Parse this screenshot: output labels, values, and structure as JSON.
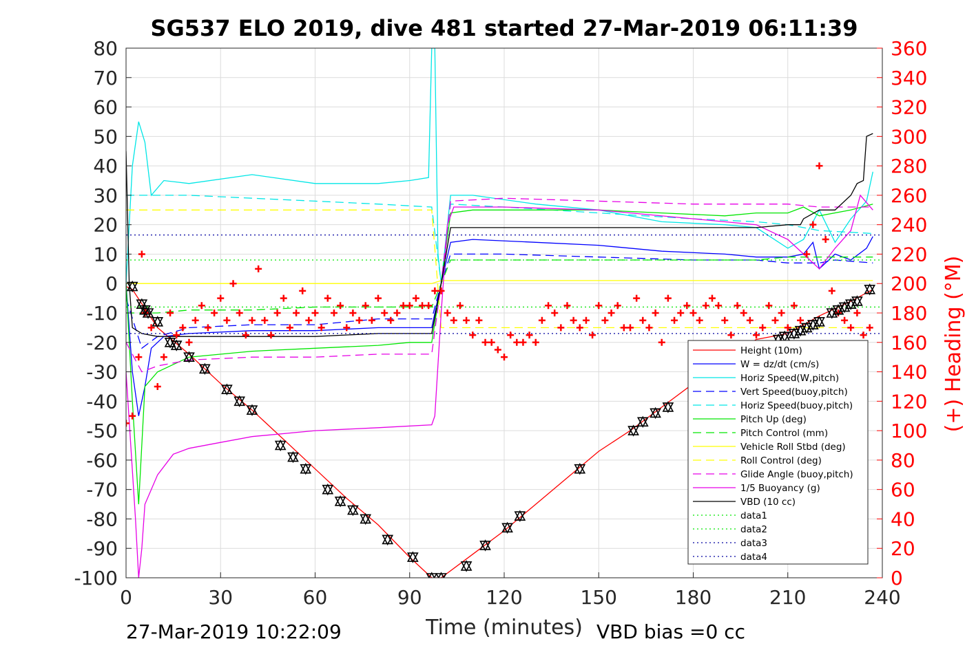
{
  "chart_data": {
    "type": "line",
    "title": "SG537 ELO 2019, dive 481 started 27-Mar-2019 06:11:39",
    "xlabel": "Time (minutes)",
    "ylabel": "",
    "ylabel_right": "(+) Heading (°M)",
    "xlim": [
      0,
      240
    ],
    "ylim": [
      -100,
      80
    ],
    "ylim_right": [
      0,
      360
    ],
    "x_ticks": [
      0,
      30,
      60,
      90,
      120,
      150,
      180,
      210,
      240
    ],
    "y_ticks": [
      80,
      70,
      60,
      50,
      40,
      30,
      20,
      10,
      0,
      -10,
      -20,
      -30,
      -40,
      -50,
      -60,
      -70,
      -80,
      -90,
      -100
    ],
    "y_ticks_right": [
      360,
      340,
      320,
      300,
      280,
      260,
      240,
      220,
      200,
      180,
      160,
      140,
      120,
      100,
      80,
      60,
      40,
      20,
      0
    ],
    "grid": true,
    "legend_position": "bottom-right",
    "footer_left": "27-Mar-2019 10:22:09",
    "footer_right": "VBD bias =0 cc",
    "series": [
      {
        "name": "Height (10m)",
        "color": "#ff0000",
        "style": "solid",
        "x": [
          0,
          2,
          10,
          20,
          30,
          40,
          50,
          60,
          70,
          80,
          90,
          97,
          100,
          110,
          120,
          130,
          140,
          150,
          160,
          170,
          180,
          190,
          200,
          210,
          220,
          230,
          237
        ],
        "y": [
          -1,
          -2,
          -15,
          -24,
          -34,
          -43,
          -53,
          -63,
          -73,
          -82,
          -93,
          -100,
          -100,
          -92,
          -84,
          -75,
          -66,
          -57,
          -50,
          -42,
          -34,
          -26,
          -19,
          -17,
          -11,
          -6,
          -2
        ]
      },
      {
        "name": "W = dz/dt (cm/s)",
        "color": "#0000ff",
        "style": "solid",
        "x": [
          0,
          2,
          4,
          6,
          8,
          12,
          20,
          40,
          60,
          80,
          90,
          97,
          100,
          103,
          110,
          130,
          150,
          170,
          190,
          200,
          210,
          215,
          218,
          220,
          225,
          230,
          235,
          237
        ],
        "y": [
          0,
          -30,
          -45,
          -35,
          -22,
          -18,
          -17,
          -16,
          -16,
          -15,
          -15,
          -15,
          0,
          14,
          15,
          14,
          13,
          11,
          10,
          9,
          9,
          10,
          14,
          5,
          10,
          8,
          12,
          16
        ]
      },
      {
        "name": "Horiz Speed(W,pitch)",
        "color": "#00e6e6",
        "style": "solid",
        "x": [
          0,
          2,
          4,
          6,
          8,
          12,
          20,
          40,
          60,
          80,
          90,
          96,
          97,
          98,
          99,
          100,
          103,
          110,
          130,
          150,
          170,
          190,
          200,
          210,
          215,
          220,
          225,
          230,
          235,
          237
        ],
        "y": [
          0,
          40,
          55,
          48,
          30,
          35,
          34,
          37,
          34,
          34,
          35,
          36,
          80,
          80,
          10,
          0,
          30,
          30,
          27,
          25,
          21,
          20,
          19,
          12,
          15,
          25,
          14,
          22,
          28,
          38
        ]
      },
      {
        "name": "Vert Speed(buoy,pitch)",
        "color": "#0000ff",
        "style": "dashed",
        "x": [
          0,
          5,
          10,
          20,
          40,
          60,
          80,
          97,
          100,
          103,
          120,
          150,
          180,
          200,
          210,
          220,
          225,
          237
        ],
        "y": [
          -5,
          -22,
          -18,
          -15,
          -14,
          -14,
          -12,
          -12,
          0,
          10,
          10,
          9,
          8,
          8,
          7,
          7,
          8,
          7
        ]
      },
      {
        "name": "Horiz Speed(buoy,pitch)",
        "color": "#00e6e6",
        "style": "dashed",
        "x": [
          0,
          5,
          10,
          20,
          40,
          60,
          80,
          97,
          100,
          103,
          120,
          150,
          180,
          200,
          210,
          220,
          237
        ],
        "y": [
          30,
          30,
          30,
          30,
          29,
          28,
          27,
          26,
          0,
          27,
          26,
          24,
          22,
          21,
          20,
          18,
          17
        ]
      },
      {
        "name": "Pitch Up (deg)",
        "color": "#00e600",
        "style": "solid",
        "x": [
          0,
          2,
          4,
          6,
          10,
          20,
          40,
          60,
          80,
          90,
          97,
          100,
          103,
          110,
          130,
          150,
          170,
          190,
          200,
          210,
          215,
          220,
          230,
          237
        ],
        "y": [
          0,
          -40,
          -75,
          -35,
          -30,
          -25,
          -23,
          -22,
          -21,
          -20,
          -20,
          0,
          24,
          25,
          25,
          25,
          24,
          23,
          24,
          24,
          26,
          23,
          25,
          27
        ]
      },
      {
        "name": "Pitch Control (mm)",
        "color": "#00e600",
        "style": "dashed",
        "x": [
          0,
          4,
          10,
          20,
          40,
          60,
          80,
          97,
          100,
          103,
          120,
          150,
          180,
          200,
          210,
          237
        ],
        "y": [
          -10,
          -10,
          -10,
          -9,
          -9,
          -8,
          -8,
          -8,
          0,
          8,
          8,
          8,
          8,
          8,
          9,
          9
        ]
      },
      {
        "name": "Vehicle Roll Stbd (deg)",
        "color": "#ffff00",
        "style": "solid",
        "x": [
          0,
          5,
          10,
          20,
          30,
          40,
          60,
          80,
          97,
          100,
          110,
          130,
          150,
          170,
          190,
          210,
          237
        ],
        "y": [
          0,
          0,
          0,
          0,
          0,
          0,
          0,
          0,
          0,
          1,
          1,
          1,
          1,
          1,
          1,
          1,
          1
        ]
      },
      {
        "name": "Roll Control (deg)",
        "color": "#ffff00",
        "style": "dashed",
        "x": [
          0,
          20,
          40,
          60,
          80,
          97,
          100,
          120,
          150,
          180,
          210,
          237
        ],
        "y": [
          25,
          25,
          25,
          25,
          25,
          25,
          -15,
          -15,
          -15,
          -15,
          -15,
          -15
        ]
      },
      {
        "name": "Glide Angle (buoy,pitch)",
        "color": "#e600e6",
        "style": "dashed",
        "x": [
          0,
          5,
          10,
          20,
          40,
          60,
          80,
          97,
          100,
          103,
          120,
          150,
          180,
          200,
          210,
          220,
          237
        ],
        "y": [
          -20,
          -30,
          -28,
          -26,
          -25,
          -25,
          -24,
          -24,
          0,
          28,
          29,
          28,
          27,
          27,
          27,
          26,
          26
        ]
      },
      {
        "name": "1/5 Buoyancy (g)",
        "color": "#e600e6",
        "style": "solid",
        "x": [
          0,
          3,
          4,
          5,
          6,
          8,
          10,
          15,
          20,
          30,
          40,
          60,
          80,
          97,
          98,
          100,
          102,
          104,
          120,
          150,
          180,
          200,
          210,
          215,
          220,
          225,
          230,
          233,
          237
        ],
        "y": [
          -30,
          -80,
          -100,
          -90,
          -75,
          -70,
          -65,
          -58,
          -56,
          -54,
          -52,
          -50,
          -49,
          -48,
          -45,
          -10,
          20,
          26,
          26,
          25,
          22,
          20,
          15,
          10,
          5,
          12,
          18,
          30,
          25
        ]
      },
      {
        "name": "VBD (10 cc)",
        "color": "#000000",
        "style": "solid",
        "x": [
          0,
          1,
          2,
          5,
          10,
          15,
          20,
          40,
          60,
          80,
          97,
          100,
          103,
          110,
          130,
          150,
          170,
          180,
          200,
          210,
          214,
          215,
          220,
          225,
          230,
          232,
          234,
          235,
          237
        ],
        "y": [
          45,
          0,
          -15,
          -17,
          -18,
          -18,
          -18,
          -18,
          -18,
          -17,
          -17,
          0,
          19,
          19,
          19,
          19,
          19,
          19,
          19,
          20,
          20,
          22,
          25,
          25,
          30,
          34,
          35,
          50,
          51
        ]
      },
      {
        "name": "data1",
        "color": "#00e600",
        "style": "dotted",
        "x": [
          0,
          240
        ],
        "y": [
          -8,
          -8
        ]
      },
      {
        "name": "data2",
        "color": "#00e600",
        "style": "dotted",
        "x": [
          0,
          240
        ],
        "y": [
          8,
          8
        ]
      },
      {
        "name": "data3",
        "color": "#0000a0",
        "style": "dotted",
        "x": [
          0,
          240
        ],
        "y": [
          -17,
          -17
        ]
      },
      {
        "name": "data4",
        "color": "#0000a0",
        "style": "dotted",
        "x": [
          0,
          240
        ],
        "y": [
          16.5,
          16.5
        ]
      }
    ],
    "heading_series": {
      "color": "#ff0000",
      "marker": "+",
      "axis": "right",
      "x": [
        0,
        2,
        4,
        5,
        6,
        8,
        10,
        12,
        14,
        16,
        18,
        20,
        22,
        24,
        26,
        28,
        30,
        32,
        34,
        36,
        38,
        40,
        42,
        44,
        46,
        48,
        50,
        52,
        54,
        56,
        58,
        60,
        62,
        64,
        66,
        68,
        70,
        72,
        74,
        76,
        78,
        80,
        82,
        84,
        86,
        88,
        90,
        92,
        94,
        96,
        98,
        100,
        102,
        104,
        106,
        108,
        110,
        112,
        114,
        116,
        118,
        120,
        122,
        124,
        126,
        128,
        130,
        132,
        134,
        136,
        138,
        140,
        142,
        144,
        146,
        148,
        150,
        152,
        154,
        156,
        158,
        160,
        162,
        164,
        166,
        168,
        170,
        172,
        174,
        176,
        178,
        180,
        182,
        184,
        186,
        188,
        190,
        192,
        194,
        196,
        198,
        200,
        202,
        204,
        206,
        208,
        210,
        212,
        214,
        216,
        218,
        220,
        222,
        224,
        226,
        228,
        230,
        232,
        234,
        236
      ],
      "y": [
        105,
        110,
        150,
        220,
        180,
        170,
        130,
        150,
        180,
        165,
        170,
        160,
        175,
        185,
        170,
        180,
        190,
        175,
        200,
        180,
        165,
        175,
        210,
        175,
        165,
        180,
        190,
        170,
        180,
        195,
        175,
        180,
        170,
        190,
        180,
        185,
        170,
        180,
        175,
        185,
        175,
        190,
        180,
        175,
        180,
        185,
        185,
        190,
        185,
        185,
        195,
        195,
        180,
        175,
        185,
        175,
        165,
        175,
        160,
        160,
        155,
        150,
        165,
        160,
        160,
        165,
        160,
        175,
        185,
        180,
        170,
        185,
        175,
        170,
        175,
        165,
        185,
        175,
        180,
        185,
        170,
        170,
        190,
        175,
        170,
        180,
        160,
        190,
        175,
        180,
        185,
        180,
        175,
        185,
        190,
        185,
        175,
        165,
        185,
        180,
        175,
        165,
        170,
        185,
        175,
        180,
        170,
        185,
        175,
        220,
        240,
        280,
        230,
        195,
        180,
        175,
        170,
        180,
        165,
        170
      ]
    },
    "markers_series": {
      "color": "#000000",
      "marker": "triangle-pair",
      "x": [
        2,
        5,
        6,
        7,
        10,
        14,
        16,
        20,
        25,
        32,
        36,
        40,
        49,
        53,
        57,
        64,
        68,
        72,
        76,
        83,
        91,
        97,
        100,
        108,
        114,
        121,
        125,
        144,
        161,
        164,
        168,
        172,
        207,
        209,
        212,
        214,
        216,
        218,
        220,
        224,
        226,
        228,
        230,
        232,
        236
      ],
      "y": [
        -1,
        -7,
        -9,
        -10,
        -13,
        -20,
        -21,
        -25,
        -29,
        -36,
        -40,
        -43,
        -55,
        -59,
        -63,
        -70,
        -74,
        -77,
        -80,
        -87,
        -93,
        -100,
        -100,
        -96,
        -89,
        -83,
        -79,
        -63,
        -50,
        -47,
        -44,
        -42,
        -19,
        -18,
        -17,
        -16,
        -15,
        -14,
        -13,
        -10,
        -9,
        -8,
        -7,
        -6,
        -2
      ]
    }
  }
}
